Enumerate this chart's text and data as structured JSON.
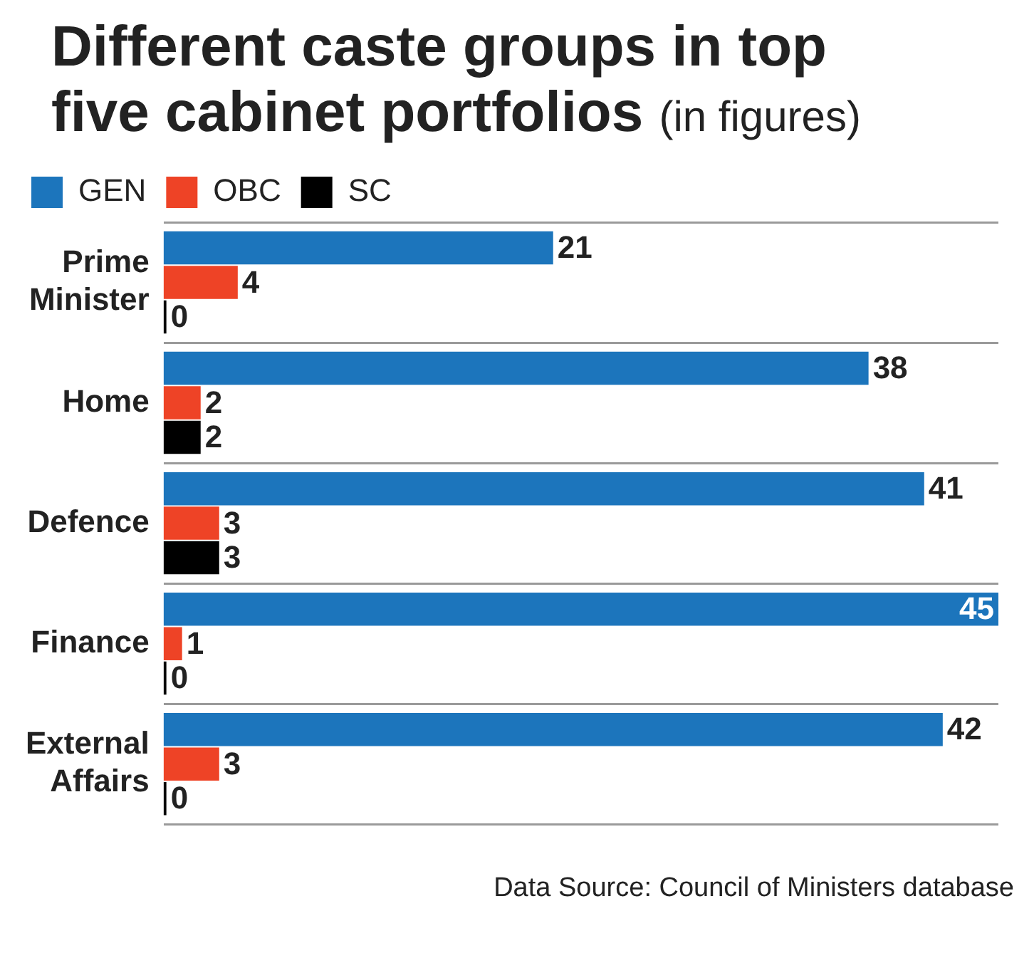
{
  "chart_data": {
    "type": "bar",
    "orientation": "horizontal",
    "title": "Different caste groups in top five cabinet portfolios",
    "subtitle": "(in figures)",
    "categories": [
      "Prime Minister",
      "Home",
      "Defence",
      "Finance",
      "External Affairs"
    ],
    "series": [
      {
        "name": "GEN",
        "color": "#1c75bc",
        "values": [
          21,
          38,
          41,
          45,
          42
        ]
      },
      {
        "name": "OBC",
        "color": "#ee4326",
        "values": [
          4,
          2,
          3,
          1,
          3
        ]
      },
      {
        "name": "SC",
        "color": "#000000",
        "values": [
          0,
          2,
          3,
          0,
          0
        ]
      }
    ],
    "data_labels": true,
    "legend": "top left",
    "grid": "y",
    "tick_labels": "y",
    "annotations": [
      "Data Source: Council of Ministers database"
    ]
  }
}
